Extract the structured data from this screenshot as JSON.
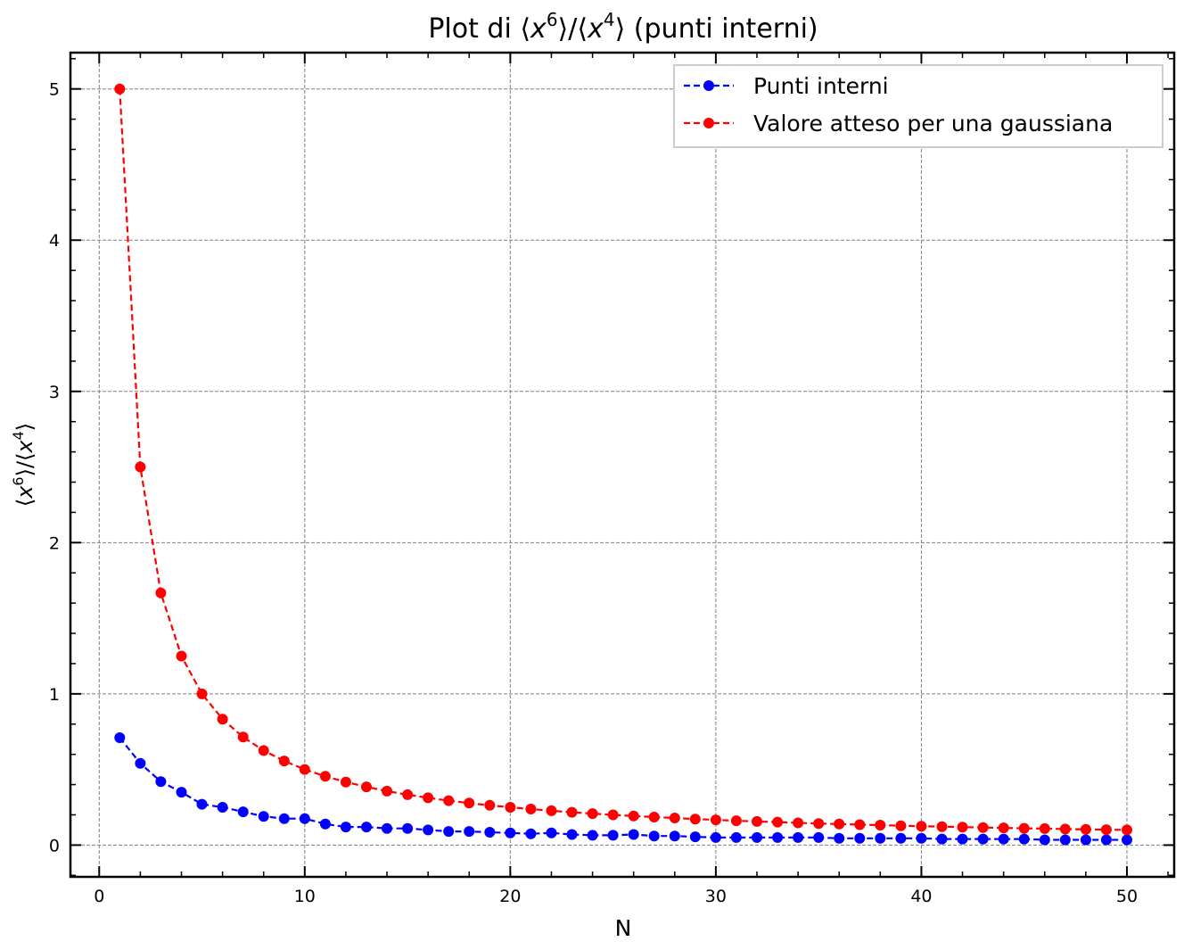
{
  "chart_data": {
    "type": "line",
    "title": {
      "prefix": "Plot di ⟨",
      "x1": "x",
      "e1": "6",
      "mid": "⟩/⟨",
      "x2": "x",
      "e2": "4",
      "suffix": "⟩ (punti interni)"
    },
    "xlabel": "N",
    "ylabel": {
      "p1": "⟨",
      "x1": "x",
      "e1": "6",
      "p2": "⟩/⟨",
      "x2": "x",
      "e2": "4",
      "p3": "⟩"
    },
    "xlim": [
      -1.4,
      52.3
    ],
    "ylim": [
      -0.21,
      5.24
    ],
    "xticks": [
      "0",
      "10",
      "20",
      "30",
      "40",
      "50"
    ],
    "yticks": [
      "0",
      "1",
      "2",
      "3",
      "4",
      "5"
    ],
    "grid": true,
    "legend_position": "top-right",
    "series": [
      {
        "name": "Punti interni",
        "color": "#0000ff",
        "x": [
          1,
          2,
          3,
          4,
          5,
          6,
          7,
          8,
          9,
          10,
          11,
          12,
          13,
          14,
          15,
          16,
          17,
          18,
          19,
          20,
          21,
          22,
          23,
          24,
          25,
          26,
          27,
          28,
          29,
          30,
          31,
          32,
          33,
          34,
          35,
          36,
          37,
          38,
          39,
          40,
          41,
          42,
          43,
          44,
          45,
          46,
          47,
          48,
          49,
          50
        ],
        "y": [
          0.71,
          0.54,
          0.42,
          0.35,
          0.27,
          0.25,
          0.22,
          0.19,
          0.175,
          0.175,
          0.14,
          0.12,
          0.12,
          0.11,
          0.11,
          0.1,
          0.09,
          0.09,
          0.085,
          0.08,
          0.075,
          0.08,
          0.07,
          0.065,
          0.065,
          0.07,
          0.06,
          0.06,
          0.055,
          0.05,
          0.05,
          0.05,
          0.05,
          0.05,
          0.05,
          0.045,
          0.045,
          0.045,
          0.045,
          0.045,
          0.04,
          0.04,
          0.04,
          0.04,
          0.04,
          0.035,
          0.035,
          0.035,
          0.035,
          0.035
        ]
      },
      {
        "name": "Valore atteso per una gaussiana",
        "color": "#ff0000",
        "x": [
          1,
          2,
          3,
          4,
          5,
          6,
          7,
          8,
          9,
          10,
          11,
          12,
          13,
          14,
          15,
          16,
          17,
          18,
          19,
          20,
          21,
          22,
          23,
          24,
          25,
          26,
          27,
          28,
          29,
          30,
          31,
          32,
          33,
          34,
          35,
          36,
          37,
          38,
          39,
          40,
          41,
          42,
          43,
          44,
          45,
          46,
          47,
          48,
          49,
          50
        ],
        "y": [
          5.0,
          2.5,
          1.667,
          1.25,
          1.0,
          0.833,
          0.714,
          0.625,
          0.556,
          0.5,
          0.455,
          0.417,
          0.385,
          0.357,
          0.333,
          0.3125,
          0.294,
          0.278,
          0.263,
          0.25,
          0.238,
          0.227,
          0.217,
          0.208,
          0.2,
          0.192,
          0.185,
          0.179,
          0.172,
          0.167,
          0.161,
          0.156,
          0.152,
          0.147,
          0.143,
          0.139,
          0.135,
          0.132,
          0.128,
          0.125,
          0.122,
          0.119,
          0.116,
          0.114,
          0.111,
          0.109,
          0.106,
          0.104,
          0.102,
          0.1
        ]
      }
    ]
  }
}
